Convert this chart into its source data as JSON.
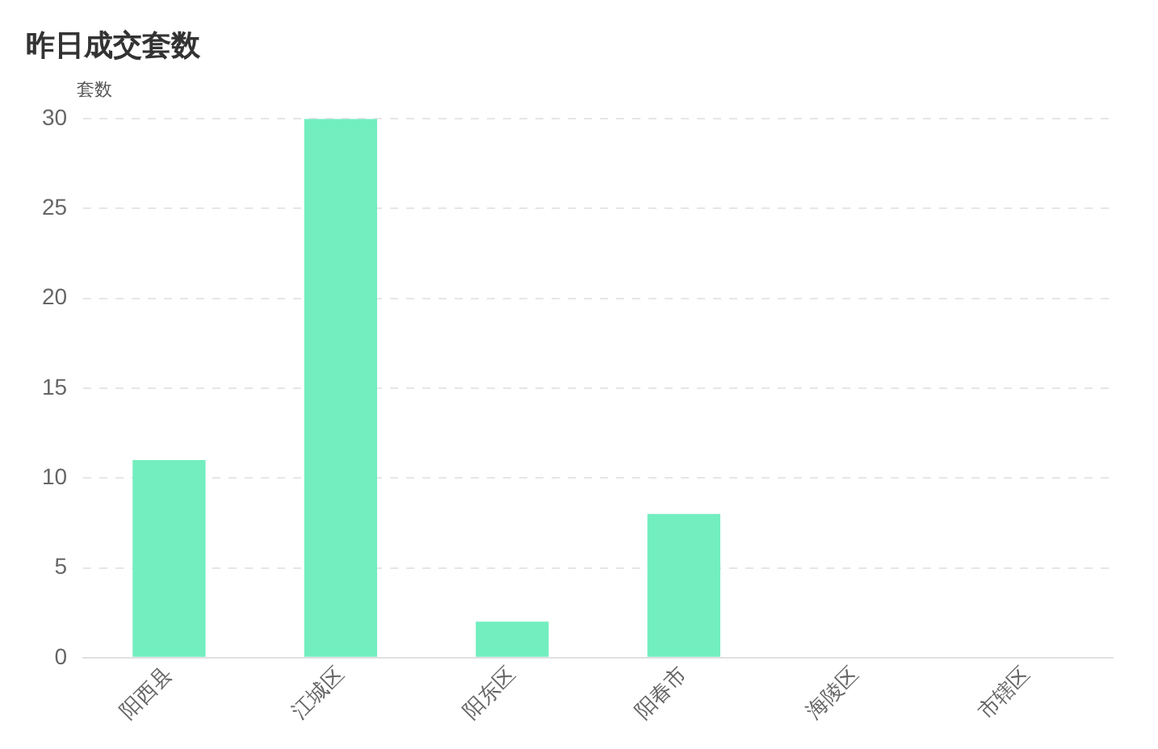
{
  "chart_data": {
    "type": "bar",
    "title": "昨日成交套数",
    "ylabel": "套数",
    "categories": [
      "阳西县",
      "江城区",
      "阳东区",
      "阳春市",
      "海陵区",
      "市辖区"
    ],
    "values": [
      11,
      30,
      2,
      8,
      0,
      0
    ],
    "color": "#72eebf",
    "ylim": [
      0,
      30
    ],
    "yticks": [
      0,
      5,
      10,
      15,
      20,
      25,
      30
    ],
    "grid": "y",
    "legend": false
  }
}
